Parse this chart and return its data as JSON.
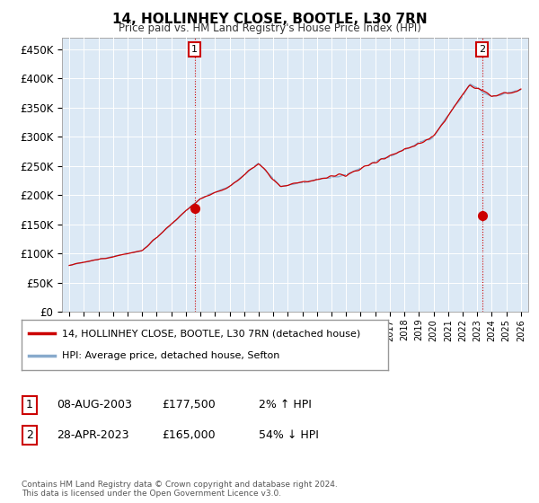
{
  "title": "14, HOLLINHEY CLOSE, BOOTLE, L30 7RN",
  "subtitle": "Price paid vs. HM Land Registry's House Price Index (HPI)",
  "ylabel_ticks": [
    "£0",
    "£50K",
    "£100K",
    "£150K",
    "£200K",
    "£250K",
    "£300K",
    "£350K",
    "£400K",
    "£450K"
  ],
  "ytick_values": [
    0,
    50000,
    100000,
    150000,
    200000,
    250000,
    300000,
    350000,
    400000,
    450000
  ],
  "ylim": [
    0,
    470000
  ],
  "xlim_start": 1994.5,
  "xlim_end": 2026.5,
  "legend_line1": "14, HOLLINHEY CLOSE, BOOTLE, L30 7RN (detached house)",
  "legend_line2": "HPI: Average price, detached house, Sefton",
  "line_color_red": "#cc0000",
  "line_color_blue": "#88aacc",
  "point1_x": 2003.6,
  "point1_y": 177500,
  "point2_x": 2023.33,
  "point2_y": 165000,
  "footer": "Contains HM Land Registry data © Crown copyright and database right 2024.\nThis data is licensed under the Open Government Licence v3.0.",
  "background_color": "#ffffff",
  "plot_bg_color": "#dce9f5",
  "grid_color": "#ffffff"
}
